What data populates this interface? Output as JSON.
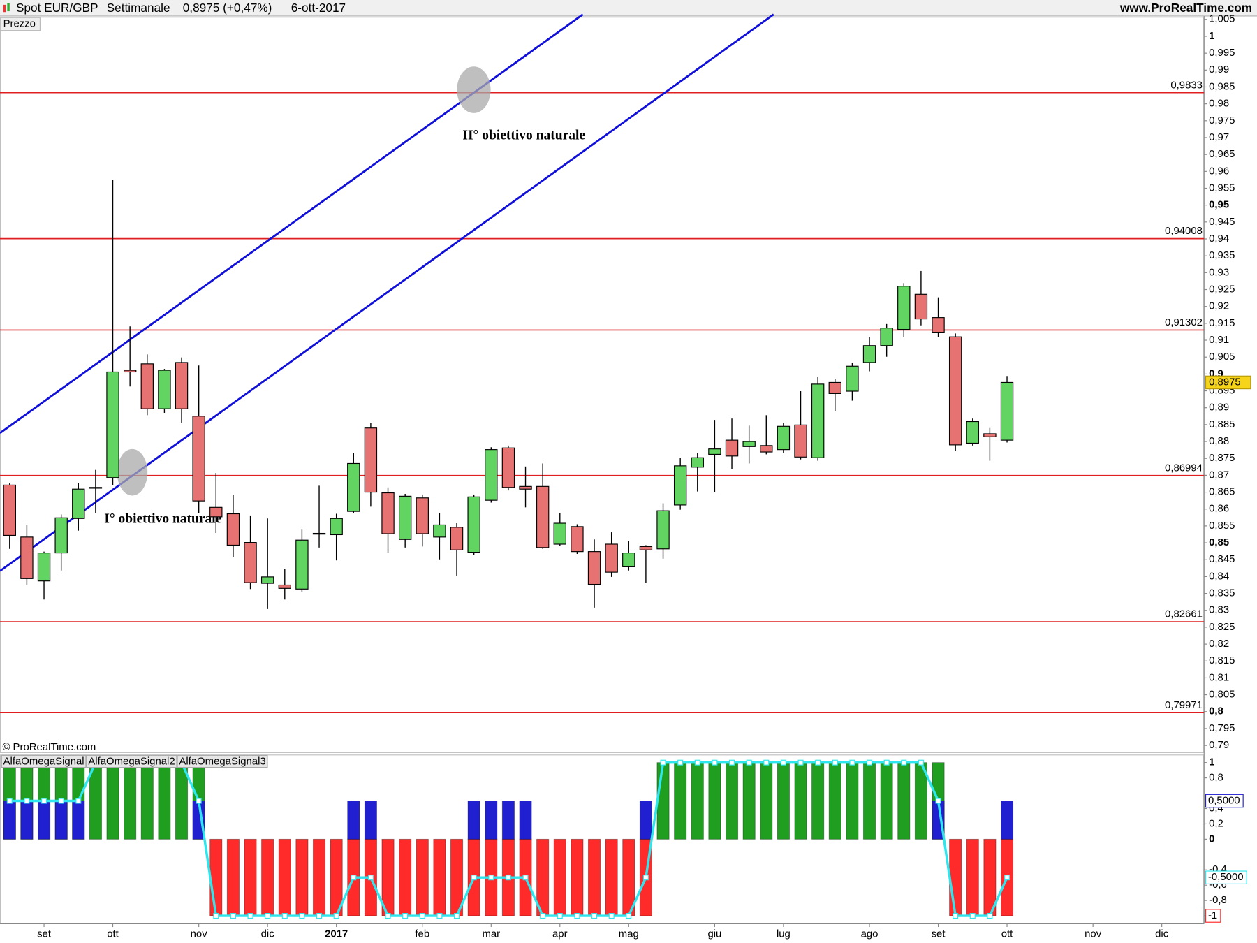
{
  "header": {
    "symbol": "Spot EUR/GBP",
    "period": "Settimanale",
    "quote": "0,8975 (+0,47%)",
    "date": "6-ott-2017",
    "site": "www.ProRealTime.com"
  },
  "chart_data": [
    {
      "type": "candlestick",
      "panel_label": "Prezzo",
      "copyright": "© ProRealTime.com",
      "up_color": "#62d462",
      "down_color": "#e77272",
      "open": [
        0.8671,
        0.8517,
        0.8387,
        0.847,
        0.8572,
        0.8662,
        0.8693,
        0.9011,
        0.903,
        0.8897,
        0.9034,
        0.8875,
        0.8605,
        0.8586,
        0.8501,
        0.838,
        0.8375,
        0.8363,
        0.8527,
        0.8524,
        0.8593,
        0.884,
        0.8648,
        0.851,
        0.8633,
        0.8517,
        0.8546,
        0.8472,
        0.8626,
        0.8781,
        0.8667,
        0.8667,
        0.8496,
        0.8548,
        0.8474,
        0.8496,
        0.8429,
        0.8489,
        0.8482,
        0.8612,
        0.8724,
        0.8762,
        0.8804,
        0.8785,
        0.8788,
        0.8776,
        0.8849,
        0.8752,
        0.8975,
        0.8949,
        0.9034,
        0.9084,
        0.9132,
        0.9236,
        0.9167,
        0.911,
        0.8795,
        0.8823,
        0.8804
      ],
      "high": [
        0.8676,
        0.8553,
        0.8474,
        0.8584,
        0.8678,
        0.8716,
        0.9575,
        0.9141,
        0.9058,
        0.9015,
        0.9049,
        0.9025,
        0.8707,
        0.8641,
        0.8581,
        0.8572,
        0.8422,
        0.8539,
        0.8669,
        0.8586,
        0.8766,
        0.8856,
        0.8664,
        0.8645,
        0.8643,
        0.8588,
        0.8558,
        0.8643,
        0.8783,
        0.8788,
        0.8726,
        0.8735,
        0.8588,
        0.8555,
        0.851,
        0.8531,
        0.8505,
        0.8493,
        0.8617,
        0.8752,
        0.8766,
        0.8864,
        0.8868,
        0.8847,
        0.8878,
        0.8856,
        0.8949,
        0.8992,
        0.8985,
        0.9032,
        0.911,
        0.9148,
        0.9269,
        0.9305,
        0.9227,
        0.912,
        0.8868,
        0.884,
        0.8994
      ],
      "low": [
        0.8482,
        0.8375,
        0.8332,
        0.8418,
        0.8536,
        0.8588,
        0.8671,
        0.8963,
        0.8878,
        0.8885,
        0.8856,
        0.8588,
        0.8529,
        0.8458,
        0.8363,
        0.8304,
        0.8332,
        0.8354,
        0.8486,
        0.8448,
        0.8588,
        0.8607,
        0.847,
        0.8486,
        0.8489,
        0.8451,
        0.8403,
        0.8463,
        0.8619,
        0.8655,
        0.8605,
        0.8482,
        0.8491,
        0.8467,
        0.8308,
        0.8399,
        0.8418,
        0.8382,
        0.8453,
        0.8598,
        0.8652,
        0.865,
        0.8719,
        0.8735,
        0.8762,
        0.8766,
        0.8747,
        0.8743,
        0.889,
        0.8921,
        0.9008,
        0.9051,
        0.911,
        0.9144,
        0.911,
        0.8773,
        0.8788,
        0.8743,
        0.8797
      ],
      "close": [
        0.8522,
        0.8394,
        0.847,
        0.8574,
        0.8659,
        0.8664,
        0.9006,
        0.9006,
        0.8897,
        0.9011,
        0.8897,
        0.8624,
        0.8577,
        0.8493,
        0.8382,
        0.8399,
        0.8365,
        0.8508,
        0.8528,
        0.8572,
        0.8735,
        0.865,
        0.8527,
        0.8638,
        0.8527,
        0.8553,
        0.8479,
        0.8636,
        0.8776,
        0.8664,
        0.8659,
        0.8486,
        0.8558,
        0.8474,
        0.8377,
        0.8413,
        0.847,
        0.8479,
        0.8595,
        0.8728,
        0.8752,
        0.8778,
        0.8757,
        0.88,
        0.8769,
        0.8845,
        0.8754,
        0.897,
        0.8942,
        0.9023,
        0.9084,
        0.9136,
        0.926,
        0.9163,
        0.9122,
        0.879,
        0.8859,
        0.8814,
        0.8975
      ],
      "ylim": [
        0.788,
        1.006
      ],
      "yticks": [
        {
          "value": 0.79,
          "label": "0,79"
        },
        {
          "value": 0.795,
          "label": "0,795"
        },
        {
          "value": 0.8,
          "label": "0,8"
        },
        {
          "value": 0.805,
          "label": "0,805"
        },
        {
          "value": 0.81,
          "label": "0,81"
        },
        {
          "value": 0.815,
          "label": "0,815"
        },
        {
          "value": 0.82,
          "label": "0,82"
        },
        {
          "value": 0.825,
          "label": "0,825"
        },
        {
          "value": 0.83,
          "label": "0,83"
        },
        {
          "value": 0.835,
          "label": "0,835"
        },
        {
          "value": 0.84,
          "label": "0,84"
        },
        {
          "value": 0.845,
          "label": "0,845"
        },
        {
          "value": 0.85,
          "label": "0,85"
        },
        {
          "value": 0.855,
          "label": "0,855"
        },
        {
          "value": 0.86,
          "label": "0,86"
        },
        {
          "value": 0.865,
          "label": "0,865"
        },
        {
          "value": 0.87,
          "label": "0,87"
        },
        {
          "value": 0.875,
          "label": "0,875"
        },
        {
          "value": 0.88,
          "label": "0,88"
        },
        {
          "value": 0.885,
          "label": "0,885"
        },
        {
          "value": 0.89,
          "label": "0,89"
        },
        {
          "value": 0.895,
          "label": "0,895"
        },
        {
          "value": 0.9,
          "label": "0,9"
        },
        {
          "value": 0.905,
          "label": "0,905"
        },
        {
          "value": 0.91,
          "label": "0,91"
        },
        {
          "value": 0.915,
          "label": "0,915"
        },
        {
          "value": 0.92,
          "label": "0,92"
        },
        {
          "value": 0.925,
          "label": "0,925"
        },
        {
          "value": 0.93,
          "label": "0,93"
        },
        {
          "value": 0.935,
          "label": "0,935"
        },
        {
          "value": 0.94,
          "label": "0,94"
        },
        {
          "value": 0.945,
          "label": "0,945"
        },
        {
          "value": 0.95,
          "label": "0,95"
        },
        {
          "value": 0.955,
          "label": "0,955"
        },
        {
          "value": 0.96,
          "label": "0,96"
        },
        {
          "value": 0.965,
          "label": "0,965"
        },
        {
          "value": 0.97,
          "label": "0,97"
        },
        {
          "value": 0.975,
          "label": "0,975"
        },
        {
          "value": 0.98,
          "label": "0,98"
        },
        {
          "value": 0.985,
          "label": "0,985"
        },
        {
          "value": 0.99,
          "label": "0,99"
        },
        {
          "value": 0.995,
          "label": "0,995"
        },
        1,
        {
          "value": 1.005,
          "label": "1,005"
        }
      ],
      "xlim": [
        -0.56,
        69.46
      ],
      "xticks": [
        {
          "value": 2,
          "label": "set"
        },
        {
          "value": 6,
          "label": "ott"
        },
        {
          "value": 11,
          "label": "nov"
        },
        {
          "value": 15,
          "label": "dic"
        },
        {
          "value": 19,
          "label": "2017"
        },
        {
          "value": 24,
          "label": "feb"
        },
        {
          "value": 28,
          "label": "mar"
        },
        {
          "value": 32,
          "label": "apr"
        },
        {
          "value": 36,
          "label": "mag"
        },
        {
          "value": 41,
          "label": "giu"
        },
        {
          "value": 45,
          "label": "lug"
        },
        {
          "value": 50,
          "label": "ago"
        },
        {
          "value": 54,
          "label": "set"
        },
        {
          "value": 58,
          "label": "ott"
        },
        {
          "value": 63,
          "label": "nov"
        },
        {
          "value": 67,
          "label": "dic"
        }
      ],
      "levels": [
        {
          "value": 0.9833,
          "label": "0,9833"
        },
        {
          "value": 0.94008,
          "label": "0,94008"
        },
        {
          "value": 0.91302,
          "label": "0,91302"
        },
        {
          "value": 0.86994,
          "label": "0,86994"
        },
        {
          "value": 0.82661,
          "label": "0,82661"
        },
        {
          "value": 0.79971,
          "label": "0,79971"
        }
      ],
      "level_color": "#e02020",
      "annotations": [
        "II° obiettivo naturale",
        "I° obiettivo naturale"
      ],
      "last_price": {
        "value": 0.8975,
        "label": "0,8975"
      }
    },
    {
      "type": "indicator",
      "ylim": [
        -1.104,
        1.094
      ],
      "yticks": [
        1,
        {
          "value": 0.8,
          "label": "0,8"
        },
        {
          "value": 0.4,
          "label": "0,4"
        },
        {
          "value": 0.2,
          "label": "0,2"
        },
        0,
        {
          "value": -0.4,
          "label": "-0,4"
        },
        {
          "value": -0.6,
          "label": "-0,6"
        },
        {
          "value": -0.8,
          "label": "-0,8"
        },
        -1
      ],
      "series": [
        {
          "name": "AlfaOmegaSignal",
          "style": "bars",
          "color": "#ff2a2a",
          "up_color": "#1f9e1f",
          "last_label": "-1",
          "values": [
            1,
            1,
            1,
            1,
            1,
            1,
            1,
            1,
            1,
            1,
            1,
            1,
            -1,
            -1,
            -1,
            -1,
            -1,
            -1,
            -1,
            -1,
            -1,
            -1,
            -1,
            -1,
            -1,
            -1,
            -1,
            -1,
            -1,
            -1,
            -1,
            -1,
            -1,
            -1,
            -1,
            -1,
            -1,
            -1,
            1,
            1,
            1,
            1,
            1,
            1,
            1,
            1,
            1,
            1,
            1,
            1,
            1,
            1,
            1,
            1,
            1,
            -1,
            -1,
            -1,
            -1
          ]
        },
        {
          "name": "AlfaOmegaSignal2",
          "style": "bars",
          "color": "#2020d0",
          "up_color": "#2020d0",
          "last_label": "0,5000",
          "values": [
            0.5,
            0.5,
            0.5,
            0.5,
            0.5,
            0,
            0,
            0,
            0,
            0,
            0,
            0.5,
            0,
            0,
            0,
            0,
            0,
            0,
            0,
            0,
            0.5,
            0.5,
            0,
            0,
            0,
            0,
            0,
            0.5,
            0.5,
            0.5,
            0.5,
            0,
            0,
            0,
            0,
            0,
            0,
            0.5,
            0,
            0,
            0,
            0,
            0,
            0,
            0,
            0,
            0,
            0,
            0,
            0,
            0,
            0,
            0,
            0,
            0.5,
            0,
            0,
            0,
            0.5
          ]
        },
        {
          "name": "AlfaOmegaSignal3",
          "style": "line",
          "color": "#2ee6ee",
          "last_label": "-0,5000",
          "values": [
            0.5,
            0.5,
            0.5,
            0.5,
            0.5,
            1,
            1,
            1,
            1,
            1,
            1,
            0.5,
            -1,
            -1,
            -1,
            -1,
            -1,
            -1,
            -1,
            -1,
            -0.5,
            -0.5,
            -1,
            -1,
            -1,
            -1,
            -1,
            -0.5,
            -0.5,
            -0.5,
            -0.5,
            -1,
            -1,
            -1,
            -1,
            -1,
            -1,
            -0.5,
            1,
            1,
            1,
            1,
            1,
            1,
            1,
            1,
            1,
            1,
            1,
            1,
            1,
            1,
            1,
            1,
            0.5,
            -1,
            -1,
            -1,
            -0.5
          ]
        }
      ]
    }
  ]
}
